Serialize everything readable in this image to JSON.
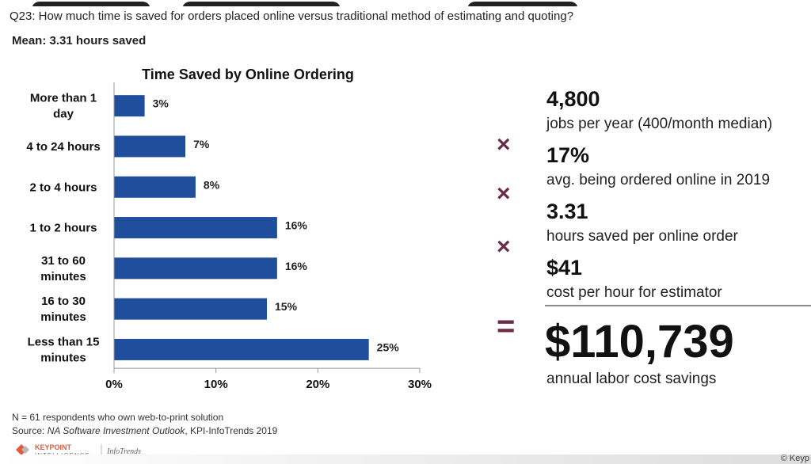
{
  "question": "Q23: How much time is saved for orders placed online versus traditional method of estimating and quoting?",
  "mean": "Mean: 3.31 hours saved",
  "chart_data": {
    "type": "bar",
    "orientation": "horizontal",
    "title": "Time Saved by Online Ordering",
    "categories": [
      [
        "More than 1",
        "day"
      ],
      [
        "4 to 24 hours"
      ],
      [
        "2 to 4 hours"
      ],
      [
        "1 to 2 hours"
      ],
      [
        "31 to 60",
        "minutes"
      ],
      [
        "16 to 30",
        "minutes"
      ],
      [
        "Less than 15",
        "minutes"
      ]
    ],
    "values": [
      3,
      7,
      8,
      16,
      16,
      15,
      25
    ],
    "value_labels": [
      "3%",
      "7%",
      "8%",
      "16%",
      "16%",
      "15%",
      "25%"
    ],
    "xlim": [
      0,
      30
    ],
    "ticks": [
      0,
      10,
      20,
      30
    ],
    "tick_labels": [
      "0%",
      "10%",
      "20%",
      "30%"
    ],
    "bar_color": "#1f4e9c",
    "grid": false
  },
  "calculation": {
    "items": [
      {
        "value": "4,800",
        "label": "jobs per year (400/month median)"
      },
      {
        "value": "17%",
        "label": "avg. being ordered online in 2019"
      },
      {
        "value": "3.31",
        "label": "hours saved per online order"
      },
      {
        "value": "$41",
        "label": "cost per hour for estimator"
      }
    ],
    "operators": [
      "×",
      "×",
      "×"
    ],
    "equals": "=",
    "total": "$110,739",
    "total_label": "annual labor cost savings",
    "operator_color": "#6b2c4a"
  },
  "footnotes": {
    "respondents": "N = 61 respondents who own web-to-print solution",
    "source_prefix": "Source: ",
    "source_title": "NA Software Investment Outlook",
    "source_suffix": ", KPI-InfoTrends 2019"
  },
  "logo": {
    "line1": "KEYPOINT",
    "line2": "INTELLIGENCE",
    "sub": "InfoTrends"
  },
  "copyright": "© Keyp"
}
